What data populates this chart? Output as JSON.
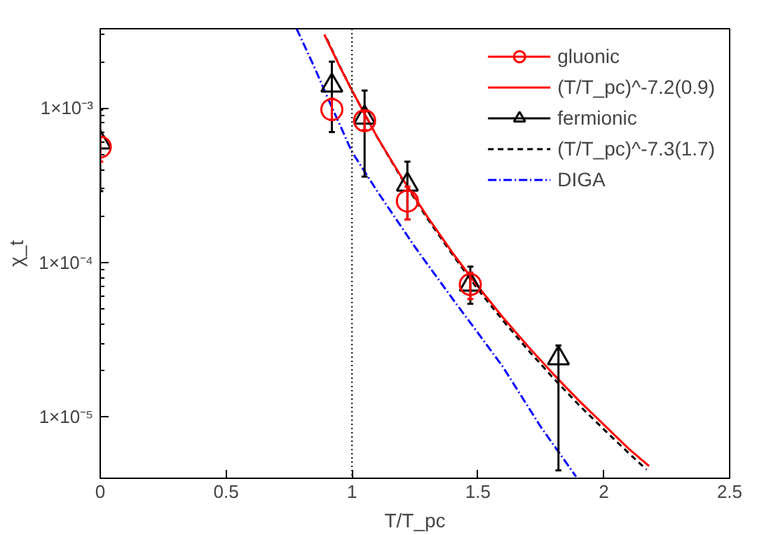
{
  "chart_data": {
    "type": "line",
    "xlabel": "T/T_pc",
    "ylabel": "χ_t",
    "log": "y",
    "grid": false,
    "legend": "top right",
    "xlim": [
      0,
      2.5
    ],
    "xticks": [
      0,
      0.5,
      1,
      1.5,
      2,
      2.5
    ],
    "ylim": [
      4e-06,
      0.00327
    ],
    "yticks": [
      {
        "value": 1e-05,
        "label": "1×10⁻⁵"
      },
      {
        "value": 0.0001,
        "label": "1×10⁻⁴"
      },
      {
        "value": 0.001,
        "label": "1×10⁻³"
      }
    ],
    "ref_lines": [
      {
        "axis": "x",
        "value": 1,
        "color": "#000000",
        "line_style": "dotted"
      }
    ],
    "series": [
      {
        "name": "gluonic",
        "type": "scatter",
        "marker": "circle",
        "color": "#ff0000",
        "x": [
          0,
          0.92,
          1.05,
          1.22,
          1.47
        ],
        "values": [
          0.00056,
          0.00098,
          0.00083,
          0.00025,
          7.2e-05
        ],
        "errors": [
          [
            0.00045,
            0.00065
          ],
          [
            0.00084,
            0.00115
          ],
          [
            0.00072,
            0.00095
          ],
          [
            0.00019,
            0.00031
          ],
          [
            5.8e-05,
            8.6e-05
          ]
        ]
      },
      {
        "name": "(T/T_pc)^-7.2(0.9)",
        "type": "line",
        "line_style": "solid",
        "color": "#ff0000",
        "x": [
          0.89,
          0.95,
          1.0,
          1.1,
          1.2,
          1.3,
          1.4,
          1.5,
          1.6,
          1.7,
          1.8,
          1.9,
          2.0,
          2.1,
          2.18
        ],
        "values": [
          0.003,
          0.00188,
          0.0013,
          0.00065,
          0.00035,
          0.000197,
          0.000115,
          7e-05,
          4.4e-05,
          2.85e-05,
          1.89e-05,
          1.28e-05,
          8.9e-06,
          6.2e-06,
          4.8e-06
        ]
      },
      {
        "name": "fermionic",
        "type": "scatter",
        "marker": "triangle",
        "color": "#000000",
        "x": [
          0,
          0.92,
          1.05,
          1.22,
          1.47,
          1.82
        ],
        "values": [
          0.0006,
          0.0014,
          0.00087,
          0.00032,
          7.2e-05,
          2.4e-05
        ],
        "errors": [
          [
            0.00029,
            0.00098
          ],
          [
            0.0007,
            0.002
          ],
          [
            0.00036,
            0.0013
          ],
          [
            0.00019,
            0.00045
          ],
          [
            5.4e-05,
            9.4e-05
          ],
          [
            4.5e-06,
            2.9e-05
          ]
        ]
      },
      {
        "name": "(T/T_pc)^-7.3(1.7)",
        "type": "line",
        "line_style": "dashed",
        "color": "#000000",
        "x": [
          0.9,
          0.95,
          1.0,
          1.1,
          1.2,
          1.3,
          1.4,
          1.5,
          1.6,
          1.7,
          1.8,
          1.9,
          2.0,
          2.1,
          2.17
        ],
        "values": [
          0.00281,
          0.00189,
          0.0013,
          0.00065,
          0.000344,
          0.000192,
          0.000112,
          6.7e-05,
          4.2e-05,
          2.7e-05,
          1.78e-05,
          1.2e-05,
          8.3e-06,
          5.8e-06,
          4.55e-06
        ]
      },
      {
        "name": "DIGA",
        "type": "line",
        "line_style": "dashdot",
        "color": "#0000ff",
        "x": [
          0.78,
          0.85,
          0.9,
          1.0,
          1.1,
          1.25,
          1.4,
          1.5,
          1.6,
          1.75,
          1.89
        ],
        "values": [
          0.00327,
          0.00185,
          0.0012,
          0.00052,
          0.00029,
          0.000126,
          5.8e-05,
          3.5e-05,
          2.1e-05,
          8.6e-06,
          4.1e-06
        ]
      }
    ]
  }
}
